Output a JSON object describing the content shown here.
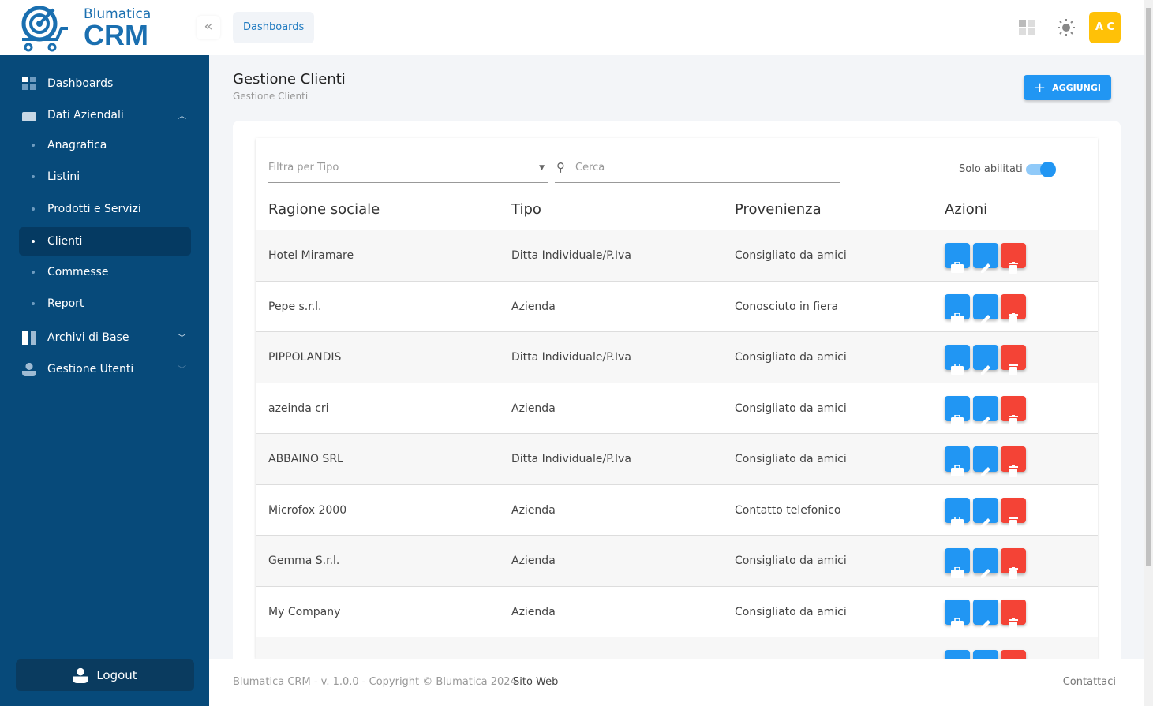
{
  "brand": {
    "line1": "Blumatica",
    "line2": "CRM"
  },
  "header": {
    "breadcrumb": "Dashboards",
    "avatar": "A C"
  },
  "sidebar": {
    "items": [
      {
        "label": "Dashboards"
      },
      {
        "label": "Dati Aziendali"
      },
      {
        "label": "Anagrafica"
      },
      {
        "label": "Listini"
      },
      {
        "label": "Prodotti e Servizi"
      },
      {
        "label": "Clienti"
      },
      {
        "label": "Commesse"
      },
      {
        "label": "Report"
      },
      {
        "label": "Archivi di Base"
      },
      {
        "label": "Gestione Utenti"
      }
    ],
    "logout": "Logout"
  },
  "page": {
    "title": "Gestione Clienti",
    "subtitle": "Gestione Clienti",
    "add_label": "AGGIUNGI"
  },
  "filters": {
    "type_placeholder": "Filtra per Tipo",
    "search_placeholder": "Cerca",
    "toggle_label": "Solo abilitati",
    "toggle_on": true
  },
  "table": {
    "headers": [
      "Ragione sociale",
      "Tipo",
      "Provenienza",
      "Azioni"
    ],
    "rows": [
      [
        "Hotel Miramare",
        "Ditta Individuale/P.Iva",
        "Consigliato da amici"
      ],
      [
        "Pepe s.r.l.",
        "Azienda",
        "Conosciuto in fiera"
      ],
      [
        "PIPPOLANDIS",
        "Ditta Individuale/P.Iva",
        "Consigliato da amici"
      ],
      [
        "azeinda cri",
        "Azienda",
        "Consigliato da amici"
      ],
      [
        "ABBAINO SRL",
        "Ditta Individuale/P.Iva",
        "Consigliato da amici"
      ],
      [
        "Microfox 2000",
        "Azienda",
        "Contatto telefonico"
      ],
      [
        "Gemma S.r.l.",
        "Azienda",
        "Consigliato da amici"
      ],
      [
        "My Company",
        "Azienda",
        "Consigliato da amici"
      ]
    ]
  },
  "footer": {
    "copyright": "Blumatica CRM - v. 1.0.0 - Copyright © Blumatica 2024",
    "site": "Sito Web",
    "contact": "Contattaci"
  },
  "colors": {
    "sidebar": "#074a7a",
    "primary": "#2196f3",
    "danger": "#f44336",
    "avatar": "#ffc107"
  }
}
